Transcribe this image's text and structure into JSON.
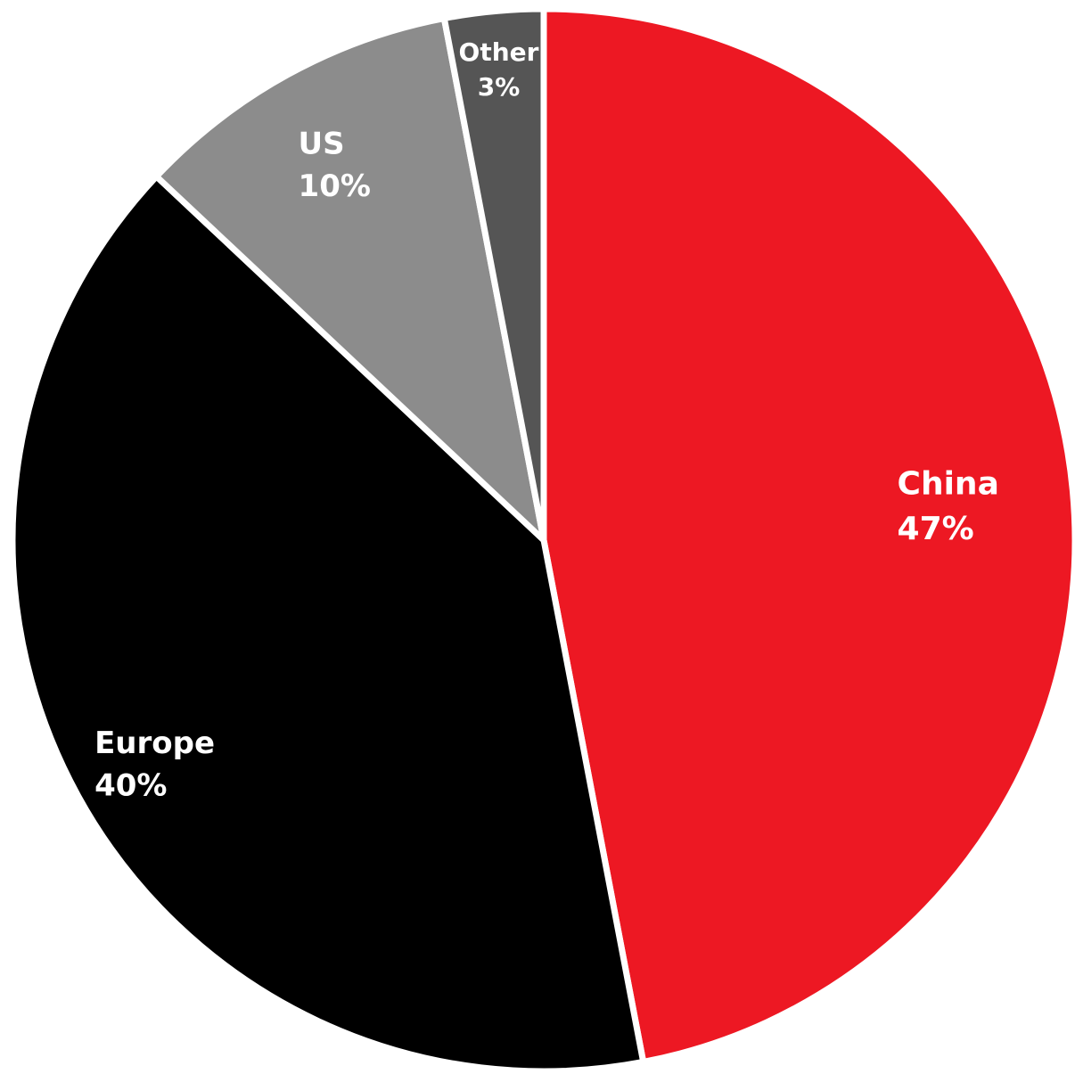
{
  "chart_data": {
    "type": "pie",
    "start_angle_deg": 0,
    "direction": "clockwise",
    "slices": [
      {
        "label": "China",
        "value": 47,
        "value_label": "47%",
        "color": "#ed1823"
      },
      {
        "label": "Europe",
        "value": 40,
        "value_label": "40%",
        "color": "#000000"
      },
      {
        "label": "US",
        "value": 10,
        "value_label": "10%",
        "color": "#8c8c8c"
      },
      {
        "label": "Other",
        "value": 3,
        "value_label": "3%",
        "color": "#555555"
      }
    ]
  }
}
